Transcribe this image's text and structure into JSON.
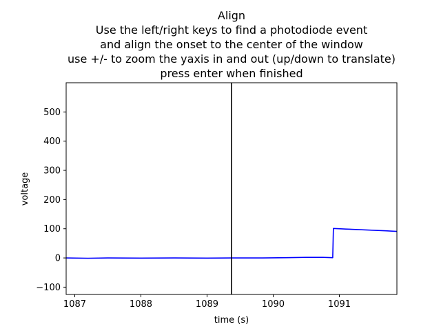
{
  "window": {
    "title_lines": [
      "Align",
      "Use the left/right keys to find a photodiode event",
      "and align the onset to the center of the window",
      "use +/- to zoom the yaxis in and out (up/down to translate)",
      "press enter when finished"
    ]
  },
  "chart_data": {
    "type": "line",
    "title": "Align\nUse the left/right keys to find a photodiode event\nand align the onset to the center of the window\nuse +/- to zoom the yaxis in and out (up/down to translate)\npress enter when finished",
    "xlabel": "time (s)",
    "ylabel": "voltage",
    "xlim": [
      1086.87,
      1091.87
    ],
    "ylim": [
      -125,
      600
    ],
    "xticks": [
      1087,
      1088,
      1089,
      1090,
      1091
    ],
    "xtick_labels": [
      "1087",
      "1088",
      "1089",
      "1090",
      "1091"
    ],
    "yticks": [
      -100,
      0,
      100,
      200,
      300,
      400,
      500
    ],
    "ytick_labels": [
      "−100",
      "0",
      "100",
      "200",
      "300",
      "400",
      "500"
    ],
    "grid": false,
    "series": [
      {
        "color": "#0000ff",
        "x": [
          1086.87,
          1087.2,
          1087.5,
          1088.0,
          1088.5,
          1089.0,
          1089.37,
          1089.8,
          1090.2,
          1090.5,
          1090.75,
          1090.9,
          1090.91,
          1091.1,
          1091.4,
          1091.7,
          1091.87
        ],
        "y": [
          0,
          -1,
          0,
          -0.5,
          0,
          -0.5,
          0,
          0,
          1,
          2,
          2,
          1,
          101,
          99,
          96,
          93,
          91
        ]
      }
    ],
    "vline": {
      "x": 1089.37,
      "color": "#000000"
    }
  }
}
